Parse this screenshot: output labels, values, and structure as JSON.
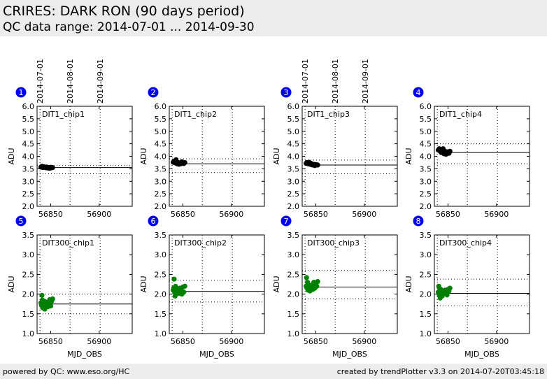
{
  "header": {
    "title": "CRIRES: DARK RON (90 days period)",
    "subtitle": "QC data range: 2014-07-01 ... 2014-09-30"
  },
  "footer": {
    "left": "powered by QC: www.eso.org/HC",
    "right": "created by trendPlotter v3.3 on 2014-07-20T03:45:18"
  },
  "colors": {
    "marker_top": "#000000",
    "marker_bottom": "#008000",
    "badge": "#0000ee",
    "header_bg": "#ececec"
  },
  "date_labels": [
    {
      "label": "2014-07-01",
      "mjd": 56839
    },
    {
      "label": "2014-08-01",
      "mjd": 56870
    },
    {
      "label": "2014-09-01",
      "mjd": 56901
    }
  ],
  "chart_data": [
    {
      "type": "scatter",
      "badge": "1",
      "name": "DIT1_chip1",
      "ylabel": "ADU",
      "xlabel": "",
      "xlim": [
        56836,
        56934
      ],
      "ylim": [
        2.0,
        6.0
      ],
      "yticks": [
        "2.0",
        "2.5",
        "3.0",
        "3.5",
        "4.0",
        "4.5",
        "5.0",
        "5.5",
        "6.0"
      ],
      "xticks": [
        "56850",
        "56900"
      ],
      "xtick_values": [
        56850,
        56900
      ],
      "mean": 3.55,
      "upper": 3.63,
      "lower": 3.3,
      "x": [
        56840,
        56841,
        56842,
        56843,
        56844,
        56845,
        56846,
        56847,
        56848,
        56849,
        56850,
        56851,
        56852
      ],
      "y": [
        3.57,
        3.6,
        3.55,
        3.58,
        3.56,
        3.54,
        3.57,
        3.53,
        3.55,
        3.52,
        3.56,
        3.54,
        3.55
      ]
    },
    {
      "type": "scatter",
      "badge": "2",
      "name": "DIT1_chip2",
      "ylabel": "ADU",
      "xlabel": "",
      "xlim": [
        56836,
        56934
      ],
      "ylim": [
        2.0,
        6.0
      ],
      "yticks": [
        "2.0",
        "2.5",
        "3.0",
        "3.5",
        "4.0",
        "4.5",
        "5.0",
        "5.5",
        "6.0"
      ],
      "xticks": [
        "56850",
        "56900"
      ],
      "xtick_values": [
        56850,
        56900
      ],
      "mean": 3.7,
      "upper": 3.9,
      "lower": 3.35,
      "x": [
        56840,
        56841,
        56842,
        56843,
        56844,
        56845,
        56846,
        56847,
        56848,
        56849,
        56850,
        56851,
        56852
      ],
      "y": [
        3.76,
        3.8,
        3.74,
        3.86,
        3.7,
        3.75,
        3.68,
        3.74,
        3.7,
        3.78,
        3.72,
        3.71,
        3.75
      ]
    },
    {
      "type": "scatter",
      "badge": "3",
      "name": "DIT1_chip3",
      "ylabel": "ADU",
      "xlabel": "",
      "xlim": [
        56836,
        56934
      ],
      "ylim": [
        2.0,
        6.0
      ],
      "yticks": [
        "2.0",
        "2.5",
        "3.0",
        "3.5",
        "4.0",
        "4.5",
        "5.0",
        "5.5",
        "6.0"
      ],
      "xticks": [
        "56850",
        "56900"
      ],
      "xtick_values": [
        56850,
        56900
      ],
      "mean": 3.65,
      "upper": 3.85,
      "lower": 3.3,
      "x": [
        56840,
        56841,
        56842,
        56843,
        56844,
        56845,
        56846,
        56847,
        56848,
        56849,
        56850,
        56851,
        56852
      ],
      "y": [
        3.72,
        3.75,
        3.7,
        3.76,
        3.68,
        3.72,
        3.66,
        3.65,
        3.68,
        3.63,
        3.67,
        3.66,
        3.65
      ]
    },
    {
      "type": "scatter",
      "badge": "4",
      "name": "DIT1_chip4",
      "ylabel": "ADU",
      "xlabel": "",
      "xlim": [
        56836,
        56934
      ],
      "ylim": [
        2.0,
        6.0
      ],
      "yticks": [
        "2.0",
        "2.5",
        "3.0",
        "3.5",
        "4.0",
        "4.5",
        "5.0",
        "5.5",
        "6.0"
      ],
      "xticks": [
        "56850",
        "56900"
      ],
      "xtick_values": [
        56850,
        56900
      ],
      "mean": 4.15,
      "upper": 4.5,
      "lower": 3.7,
      "x": [
        56840,
        56841,
        56842,
        56843,
        56844,
        56845,
        56846,
        56847,
        56848,
        56849,
        56850,
        56851,
        56852
      ],
      "y": [
        4.25,
        4.3,
        4.2,
        4.15,
        4.22,
        4.3,
        4.1,
        4.2,
        4.08,
        4.15,
        4.18,
        4.12,
        4.2
      ]
    },
    {
      "type": "scatter",
      "badge": "5",
      "name": "DIT300_chip1",
      "ylabel": "ADU",
      "xlabel": "MJD_OBS",
      "xlim": [
        56836,
        56934
      ],
      "ylim": [
        1.0,
        3.5
      ],
      "yticks": [
        "1.0",
        "1.5",
        "2.0",
        "2.5",
        "3.0",
        "3.5"
      ],
      "xticks": [
        "56850",
        "56900"
      ],
      "xtick_values": [
        56850,
        56900
      ],
      "mean": 1.75,
      "upper": 2.0,
      "lower": 1.5,
      "x": [
        56840,
        56840.5,
        56841,
        56841.5,
        56842,
        56842.5,
        56843,
        56843.5,
        56844,
        56844.5,
        56845,
        56846,
        56847,
        56848,
        56849,
        56850,
        56851,
        56852
      ],
      "y": [
        1.78,
        1.72,
        1.97,
        1.85,
        1.65,
        1.8,
        1.7,
        1.82,
        1.62,
        1.75,
        1.8,
        1.72,
        1.68,
        1.75,
        1.86,
        1.7,
        1.82,
        1.88
      ]
    },
    {
      "type": "scatter",
      "badge": "6",
      "name": "DIT300_chip2",
      "ylabel": "ADU",
      "xlabel": "MJD_OBS",
      "xlim": [
        56836,
        56934
      ],
      "ylim": [
        1.0,
        3.5
      ],
      "yticks": [
        "1.0",
        "1.5",
        "2.0",
        "2.5",
        "3.0",
        "3.5"
      ],
      "xticks": [
        "56850",
        "56900"
      ],
      "xtick_values": [
        56850,
        56900
      ],
      "mean": 2.07,
      "upper": 2.35,
      "lower": 1.8,
      "x": [
        56840,
        56840.5,
        56841,
        56841.5,
        56842,
        56842.5,
        56843,
        56844,
        56845,
        56846,
        56847,
        56848,
        56849,
        56850,
        56851,
        56852
      ],
      "y": [
        2.1,
        2.15,
        2.38,
        2.05,
        1.95,
        2.2,
        2.0,
        2.12,
        2.08,
        2.02,
        2.15,
        2.1,
        2.0,
        2.18,
        2.05,
        2.2
      ]
    },
    {
      "type": "scatter",
      "badge": "7",
      "name": "DIT300_chip3",
      "ylabel": "ADU",
      "xlabel": "MJD_OBS",
      "xlim": [
        56836,
        56934
      ],
      "ylim": [
        1.0,
        3.5
      ],
      "yticks": [
        "1.0",
        "1.5",
        "2.0",
        "2.5",
        "3.0",
        "3.5"
      ],
      "xticks": [
        "56850",
        "56900"
      ],
      "xtick_values": [
        56850,
        56900
      ],
      "mean": 2.18,
      "upper": 2.6,
      "lower": 1.88,
      "x": [
        56840,
        56840.5,
        56841,
        56841.5,
        56842,
        56842.5,
        56843,
        56844,
        56845,
        56846,
        56847,
        56848,
        56849,
        56850,
        56851,
        56852
      ],
      "y": [
        2.2,
        2.42,
        2.15,
        2.3,
        2.1,
        2.25,
        2.2,
        2.08,
        2.15,
        2.22,
        2.12,
        2.3,
        2.15,
        2.25,
        2.2,
        2.32
      ]
    },
    {
      "type": "scatter",
      "badge": "8",
      "name": "DIT300_chip4",
      "ylabel": "ADU",
      "xlabel": "MJD_OBS",
      "xlim": [
        56836,
        56934
      ],
      "ylim": [
        1.0,
        3.5
      ],
      "yticks": [
        "1.0",
        "1.5",
        "2.0",
        "2.5",
        "3.0",
        "3.5"
      ],
      "xticks": [
        "56850",
        "56900"
      ],
      "xtick_values": [
        56850,
        56900
      ],
      "mean": 2.02,
      "upper": 2.38,
      "lower": 1.7,
      "x": [
        56840,
        56840.5,
        56841,
        56841.5,
        56842,
        56842.5,
        56843,
        56844,
        56845,
        56846,
        56847,
        56848,
        56849,
        56850,
        56851,
        56852
      ],
      "y": [
        2.05,
        2.2,
        1.98,
        2.1,
        1.9,
        2.12,
        2.0,
        1.95,
        2.08,
        2.02,
        2.1,
        2.05,
        1.98,
        2.12,
        2.08,
        2.15
      ]
    }
  ]
}
